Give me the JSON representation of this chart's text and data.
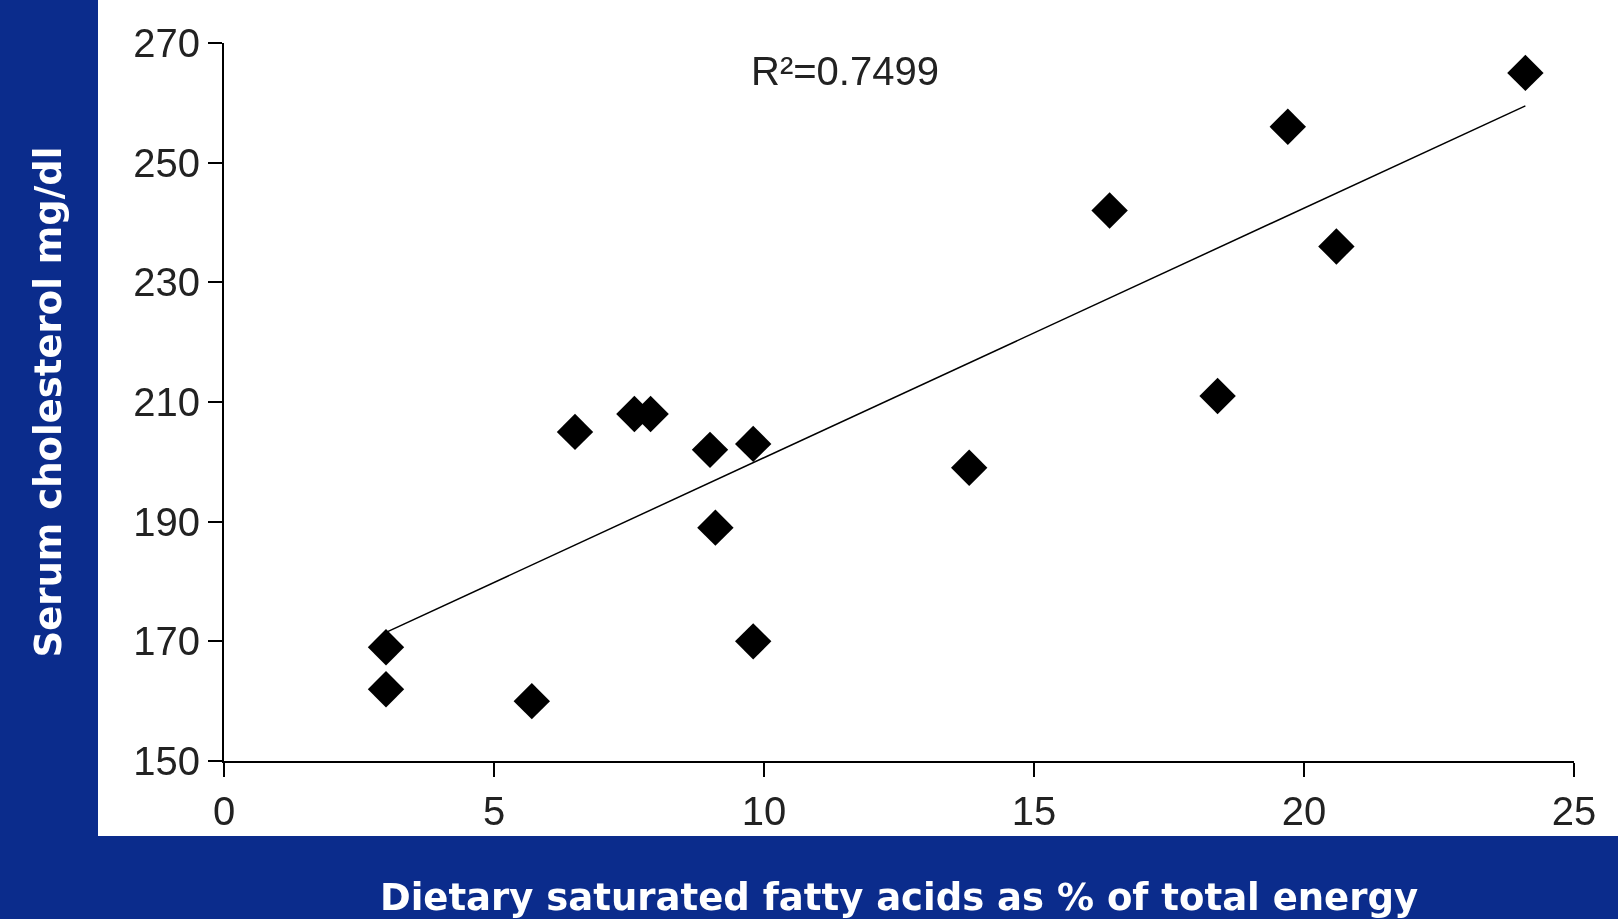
{
  "chart_data": {
    "type": "scatter",
    "xlabel": "Dietary saturated fatty acids as % of total energy",
    "ylabel": "Serum cholesterol mg/dl",
    "xlim": [
      0,
      25
    ],
    "ylim": [
      150,
      270
    ],
    "xticks": [
      0,
      5,
      10,
      15,
      20,
      25
    ],
    "yticks": [
      150,
      170,
      190,
      210,
      230,
      250,
      270
    ],
    "grid": false,
    "legend": false,
    "annotations": [
      "R²=0.7499"
    ],
    "series": [
      {
        "marker": "diamond",
        "color": "#000000",
        "x": [
          3.0,
          3.0,
          5.7,
          6.5,
          7.6,
          7.9,
          9.0,
          9.1,
          9.8,
          9.8,
          13.8,
          16.4,
          18.4,
          19.7,
          20.6,
          24.1
        ],
        "values": [
          169,
          162,
          160,
          205,
          208,
          208,
          202,
          189,
          203,
          170,
          199,
          242,
          211,
          256,
          236,
          265
        ]
      },
      {
        "type": "line",
        "marker": "none",
        "color": "#000000",
        "x": [
          3.0,
          24.1
        ],
        "values": [
          171.5,
          259.5
        ]
      }
    ]
  }
}
